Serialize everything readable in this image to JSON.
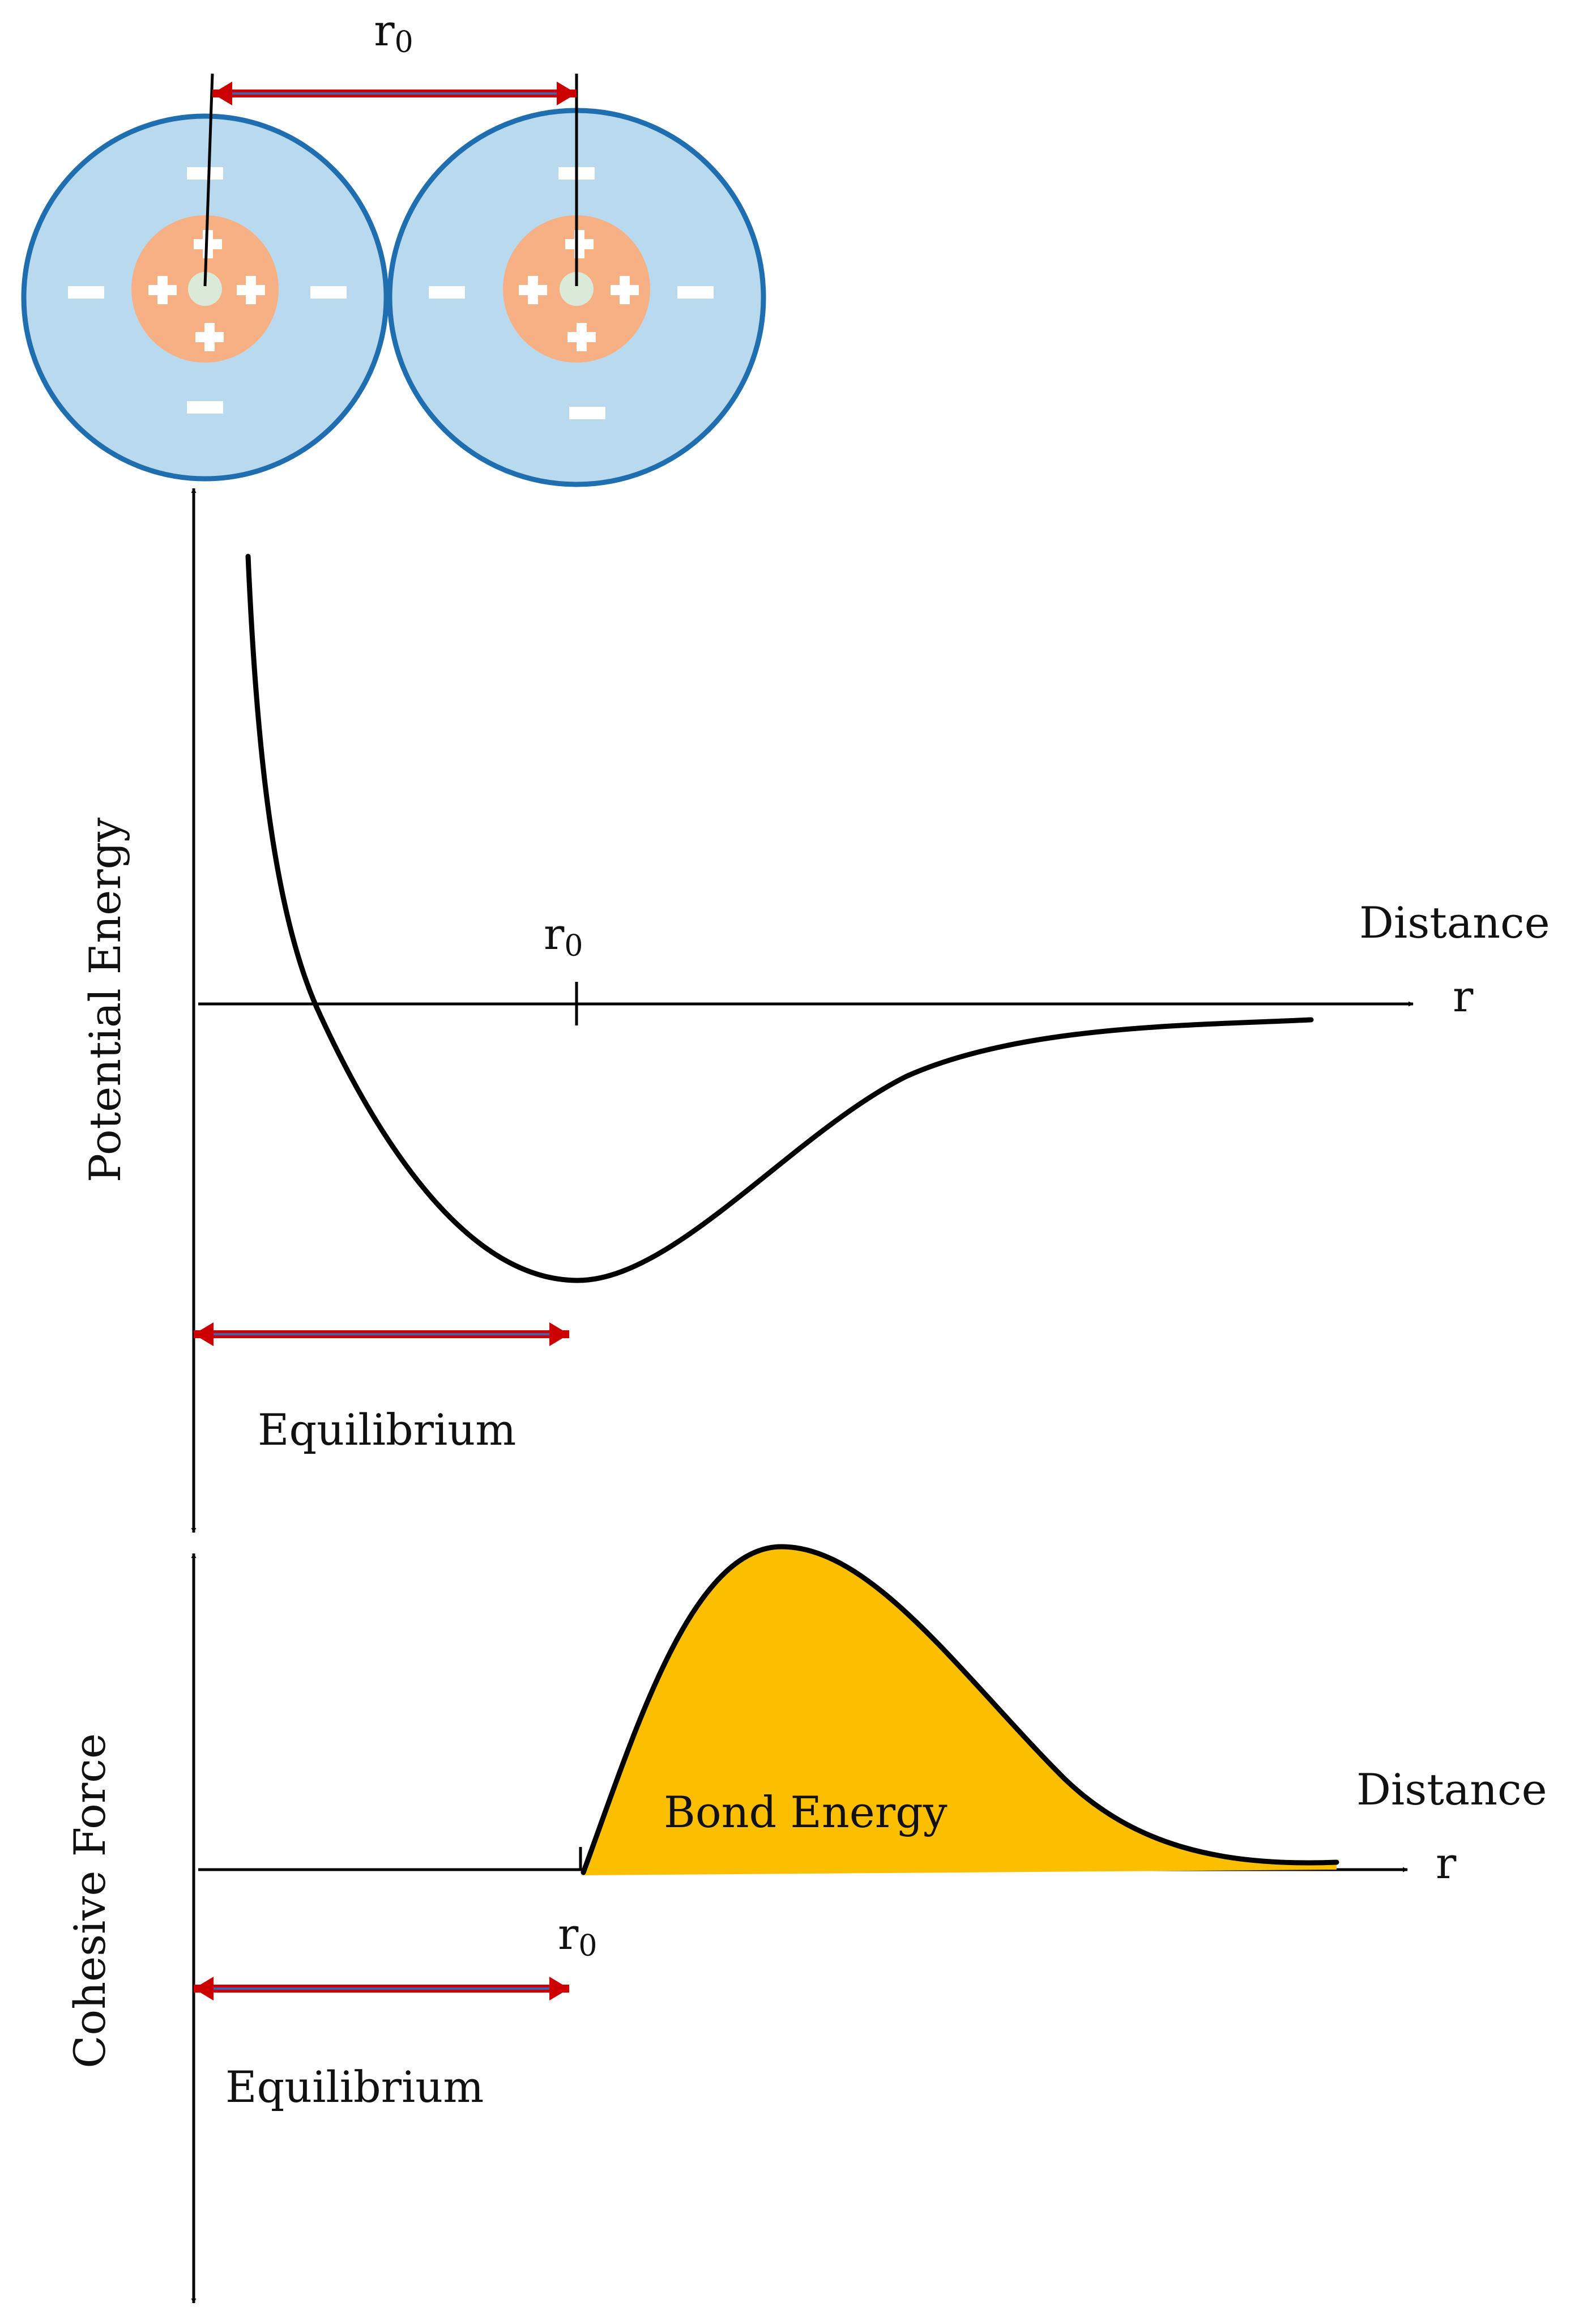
{
  "atoms": {
    "spacing_label": "r",
    "spacing_sub": "0",
    "count": 2,
    "negative_symbol": "−",
    "positive_symbol": "+",
    "colors": {
      "electron_cloud": "#b9d9ef",
      "cloud_outline": "#1f6fb0",
      "nucleus": "#f6b083",
      "core": "#dbe9d8",
      "arrow_red": "#cc0000",
      "arrow_blue": "#3b63b6"
    }
  },
  "potential_energy": {
    "y_axis_label": "Potential Energy",
    "x_axis_title": "Distance",
    "x_axis_symbol": "r",
    "r0_label": "r",
    "r0_sub": "0",
    "equilibrium_label": "Equilibrium"
  },
  "cohesive_force": {
    "y_axis_label": "Cohesive Force",
    "x_axis_title": "Distance",
    "x_axis_symbol": "r",
    "r0_label": "r",
    "r0_sub": "0",
    "area_label": "Bond Energy",
    "area_color": "#fbbf00",
    "equilibrium_label": "Equilibrium"
  }
}
